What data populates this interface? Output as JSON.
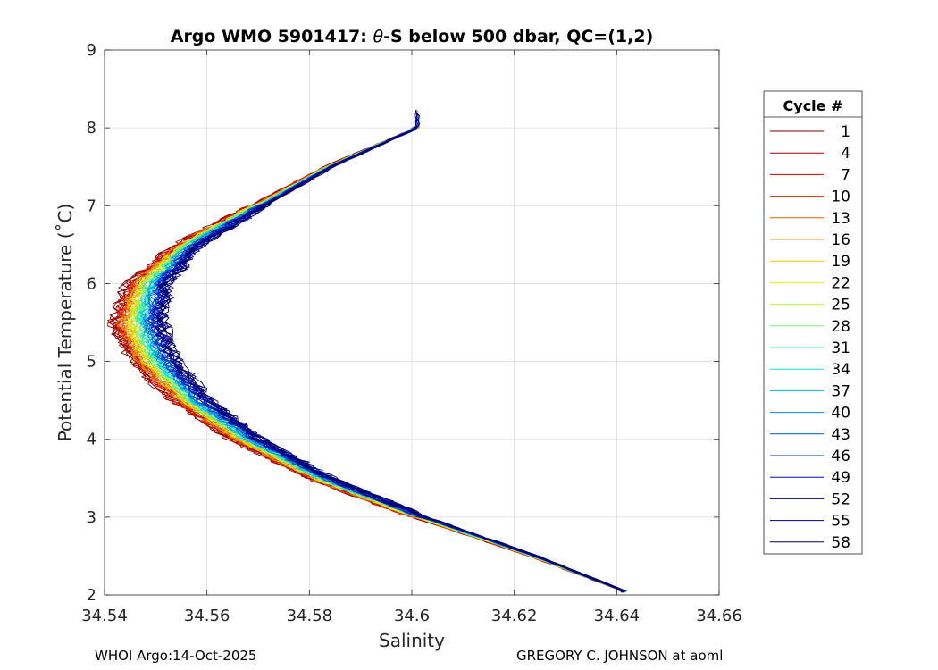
{
  "chart_data": {
    "type": "line",
    "title_parts": {
      "prefix": "Argo WMO 5901417: ",
      "theta": "θ",
      "suffix": "-S below 500 dbar,  QC=(1,2)"
    },
    "xlabel": "Salinity",
    "ylabel": "Potential Temperature (˚C)",
    "xlim": [
      34.54,
      34.66
    ],
    "ylim": [
      2,
      9
    ],
    "xticks": [
      34.54,
      34.56,
      34.58,
      34.6,
      34.62,
      34.64,
      34.66
    ],
    "xtick_labels": [
      "34.54",
      "34.56",
      "34.58",
      "34.6",
      "34.62",
      "34.64",
      "34.66"
    ],
    "yticks": [
      2,
      3,
      4,
      5,
      6,
      7,
      8,
      9
    ],
    "ytick_labels": [
      "2",
      "3",
      "4",
      "5",
      "6",
      "7",
      "8",
      "9"
    ],
    "grid": true,
    "legend_title": "Cycle #",
    "legend_placement": "right-outside",
    "colormap": "jet",
    "series": [
      {
        "name": "1",
        "color": "#800000"
      },
      {
        "name": "4",
        "color": "#a40000"
      },
      {
        "name": "7",
        "color": "#c80000"
      },
      {
        "name": "10",
        "color": "#e02800"
      },
      {
        "name": "13",
        "color": "#e86000"
      },
      {
        "name": "16",
        "color": "#ec9400"
      },
      {
        "name": "19",
        "color": "#e8c800"
      },
      {
        "name": "22",
        "color": "#e8f000"
      },
      {
        "name": "25",
        "color": "#b4f040"
      },
      {
        "name": "28",
        "color": "#78f078"
      },
      {
        "name": "31",
        "color": "#40f0b0"
      },
      {
        "name": "34",
        "color": "#10e0e0"
      },
      {
        "name": "37",
        "color": "#00b8f0"
      },
      {
        "name": "40",
        "color": "#0088e8"
      },
      {
        "name": "43",
        "color": "#0058d8"
      },
      {
        "name": "46",
        "color": "#0030c8"
      },
      {
        "name": "49",
        "color": "#0010b0"
      },
      {
        "name": "52",
        "color": "#000098"
      },
      {
        "name": "55",
        "color": "#000080"
      },
      {
        "name": "58",
        "color": "#00006c"
      }
    ],
    "profile_template": [
      {
        "t": 2.05,
        "s": 34.6415
      },
      {
        "t": 2.5,
        "s": 34.6235
      },
      {
        "t": 3.0,
        "s": 34.601
      },
      {
        "t": 3.5,
        "s": 34.5815
      },
      {
        "t": 4.0,
        "s": 34.5665
      },
      {
        "t": 4.5,
        "s": 34.5555
      },
      {
        "t": 5.0,
        "s": 34.548
      },
      {
        "t": 5.5,
        "s": 34.5445
      },
      {
        "t": 6.0,
        "s": 34.547
      },
      {
        "t": 6.5,
        "s": 34.5555
      },
      {
        "t": 7.0,
        "s": 34.5695
      },
      {
        "t": 7.5,
        "s": 34.5835
      },
      {
        "t": 8.0,
        "s": 34.601
      }
    ],
    "profile_spread": [
      {
        "t": 2.05,
        "d": 0.0
      },
      {
        "t": 2.5,
        "d": 0.001
      },
      {
        "t": 3.0,
        "d": 0.002
      },
      {
        "t": 3.5,
        "d": 0.003
      },
      {
        "t": 4.0,
        "d": 0.0045
      },
      {
        "t": 4.5,
        "d": 0.0055
      },
      {
        "t": 5.0,
        "d": 0.0065
      },
      {
        "t": 5.5,
        "d": 0.0075
      },
      {
        "t": 6.0,
        "d": 0.006
      },
      {
        "t": 6.5,
        "d": 0.0035
      },
      {
        "t": 7.0,
        "d": 0.002
      },
      {
        "t": 7.5,
        "d": 0.001
      },
      {
        "t": 8.0,
        "d": 0.0
      }
    ]
  },
  "footer": {
    "left": "WHOI Argo:14-Oct-2025",
    "right": "GREGORY C. JOHNSON at aoml"
  }
}
